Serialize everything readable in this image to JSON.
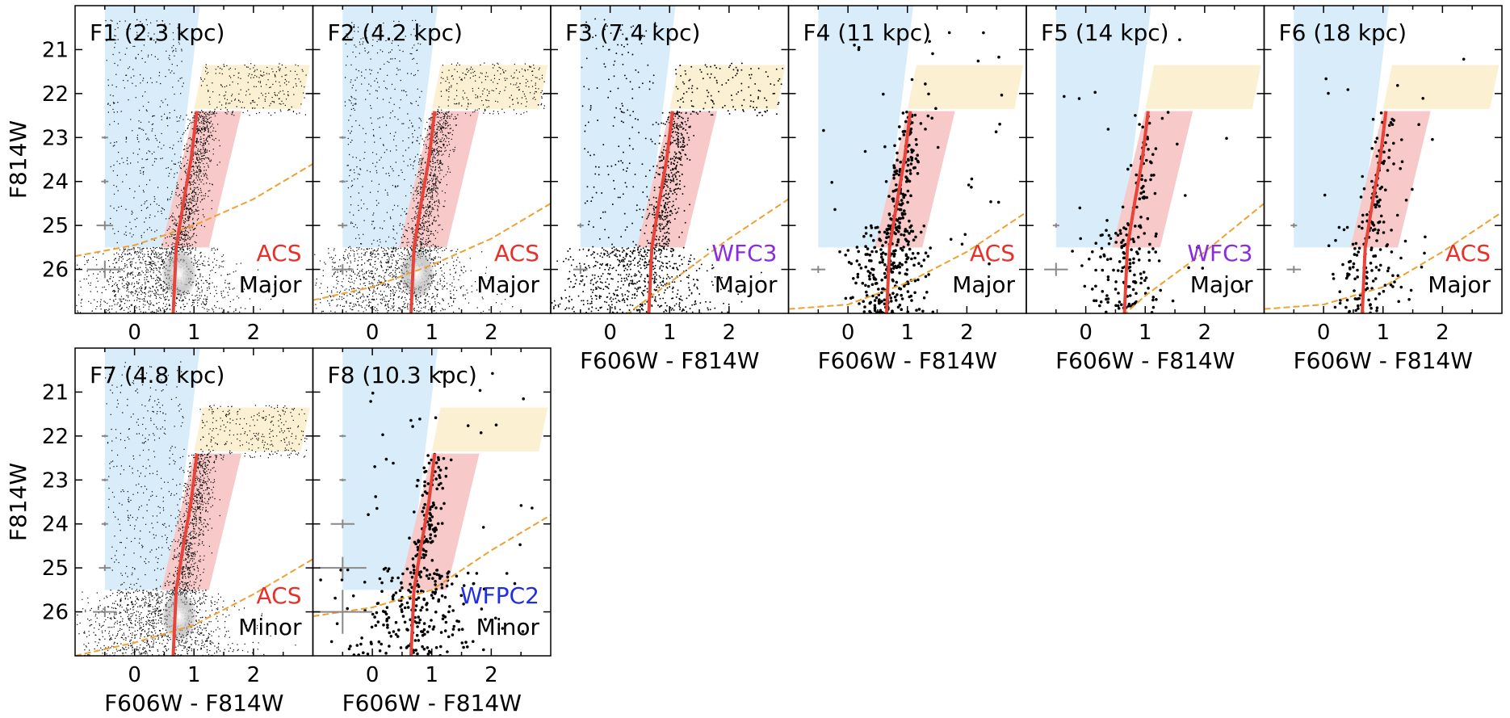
{
  "chart_data": {
    "type": "scatter",
    "layout": "multi-panel color-magnitude diagrams",
    "shared": {
      "xlabel": "F606W - F814W",
      "ylabel": "F814W",
      "xlim": [
        -1.0,
        3.0
      ],
      "ylim": [
        27.0,
        20.0
      ],
      "y_inverted": true,
      "x_ticks": [
        "0",
        "1",
        "2"
      ],
      "y_ticks": [
        "21",
        "22",
        "23",
        "24",
        "25",
        "26"
      ],
      "regions": {
        "blue_region": {
          "color": "#d8ecfa",
          "polygon": [
            [
              -0.5,
              20.0
            ],
            [
              1.1,
              20.0
            ],
            [
              0.6,
              25.5
            ],
            [
              -0.5,
              25.5
            ]
          ]
        },
        "yellow_region": {
          "color": "#fbf1d2",
          "polygon": [
            [
              1.15,
              21.35
            ],
            [
              2.95,
              21.35
            ],
            [
              2.8,
              22.35
            ],
            [
              1.0,
              22.35
            ]
          ]
        },
        "red_region": {
          "color": "#f8c9c9",
          "polygon": [
            [
              1.0,
              22.4
            ],
            [
              1.8,
              22.4
            ],
            [
              1.25,
              25.5
            ],
            [
              0.45,
              25.5
            ]
          ]
        }
      },
      "fiducial_color": "#e8443a",
      "fiducial_line": [
        [
          0.65,
          27.0
        ],
        [
          0.7,
          25.5
        ],
        [
          0.82,
          24.5
        ],
        [
          0.95,
          23.5
        ],
        [
          1.05,
          22.4
        ]
      ],
      "completeness_color": "#f0a030"
    },
    "panels": [
      {
        "id": "F1",
        "title": "F1 (2.3 kpc)",
        "instrument": "ACS",
        "instrument_color": "#e8302a",
        "merger": "Major",
        "density": "dense",
        "show_xlabel": false,
        "show_ylabel": true,
        "completeness_line": [
          [
            -1.0,
            25.7
          ],
          [
            0.0,
            25.45
          ],
          [
            1.0,
            25.0
          ],
          [
            2.0,
            24.4
          ],
          [
            3.0,
            23.6
          ]
        ],
        "error_bars": [
          {
            "y": 23.0,
            "xerr": 0.03,
            "yerr": 0.03
          },
          {
            "y": 24.0,
            "xerr": 0.06,
            "yerr": 0.05
          },
          {
            "y": 25.0,
            "xerr": 0.14,
            "yerr": 0.1
          },
          {
            "y": 26.0,
            "xerr": 0.3,
            "yerr": 0.2
          }
        ]
      },
      {
        "id": "F2",
        "title": "F2 (4.2 kpc)",
        "instrument": "ACS",
        "instrument_color": "#e8302a",
        "merger": "Major",
        "density": "dense",
        "show_xlabel": false,
        "show_ylabel": false,
        "completeness_line": [
          [
            -1.0,
            26.7
          ],
          [
            0.0,
            26.4
          ],
          [
            1.0,
            25.9
          ],
          [
            2.0,
            25.3
          ],
          [
            3.0,
            24.5
          ]
        ],
        "error_bars": [
          {
            "y": 23.0,
            "xerr": 0.02,
            "yerr": 0.02
          },
          {
            "y": 24.0,
            "xerr": 0.04,
            "yerr": 0.03
          },
          {
            "y": 25.0,
            "xerr": 0.08,
            "yerr": 0.06
          },
          {
            "y": 26.0,
            "xerr": 0.18,
            "yerr": 0.12
          }
        ]
      },
      {
        "id": "F3",
        "title": "F3 (7.4 kpc)",
        "instrument": "WFC3",
        "instrument_color": "#8a2be2",
        "merger": "Major",
        "density": "medium",
        "show_xlabel": true,
        "show_ylabel": false,
        "completeness_line": [
          [
            0.0,
            27.3
          ],
          [
            1.0,
            26.3
          ],
          [
            2.0,
            25.3
          ],
          [
            3.0,
            24.4
          ]
        ],
        "error_bars": [
          {
            "y": 25.0,
            "xerr": 0.05,
            "yerr": 0.05
          },
          {
            "y": 26.0,
            "xerr": 0.12,
            "yerr": 0.1
          }
        ]
      },
      {
        "id": "F4",
        "title": "F4 (11 kpc)",
        "instrument": "ACS",
        "instrument_color": "#e8302a",
        "merger": "Major",
        "density": "sparse",
        "show_xlabel": true,
        "show_ylabel": false,
        "completeness_line": [
          [
            -1.0,
            26.9
          ],
          [
            0.0,
            26.8
          ],
          [
            1.0,
            26.3
          ],
          [
            2.0,
            25.6
          ],
          [
            3.0,
            24.7
          ]
        ],
        "error_bars": [
          {
            "y": 26.0,
            "xerr": 0.12,
            "yerr": 0.08
          }
        ]
      },
      {
        "id": "F5",
        "title": "F5 (14 kpc)",
        "instrument": "WFC3",
        "instrument_color": "#8a2be2",
        "merger": "Major",
        "density": "very_sparse",
        "show_xlabel": true,
        "show_ylabel": false,
        "completeness_line": [
          [
            0.5,
            27.2
          ],
          [
            1.0,
            26.6
          ],
          [
            2.0,
            25.6
          ],
          [
            3.0,
            24.5
          ]
        ],
        "error_bars": [
          {
            "y": 25.0,
            "xerr": 0.05,
            "yerr": 0.05
          },
          {
            "y": 26.0,
            "xerr": 0.2,
            "yerr": 0.15
          }
        ]
      },
      {
        "id": "F6",
        "title": "F6 (18 kpc)",
        "instrument": "ACS",
        "instrument_color": "#e8302a",
        "merger": "Major",
        "density": "very_sparse",
        "show_xlabel": true,
        "show_ylabel": false,
        "completeness_line": [
          [
            -1.0,
            26.9
          ],
          [
            0.0,
            26.8
          ],
          [
            1.0,
            26.4
          ],
          [
            2.0,
            25.6
          ],
          [
            3.0,
            24.7
          ]
        ],
        "error_bars": [
          {
            "y": 25.0,
            "xerr": 0.05,
            "yerr": 0.05
          },
          {
            "y": 26.0,
            "xerr": 0.12,
            "yerr": 0.08
          }
        ]
      },
      {
        "id": "F7",
        "title": "F7 (4.8 kpc)",
        "instrument": "ACS",
        "instrument_color": "#e8302a",
        "merger": "Minor",
        "density": "dense",
        "show_xlabel": true,
        "show_ylabel": true,
        "completeness_line": [
          [
            -1.0,
            27.0
          ],
          [
            0.0,
            26.7
          ],
          [
            1.0,
            26.3
          ],
          [
            2.0,
            25.6
          ],
          [
            3.0,
            24.8
          ]
        ],
        "error_bars": [
          {
            "y": 22.0,
            "xerr": 0.02,
            "yerr": 0.02
          },
          {
            "y": 23.0,
            "xerr": 0.03,
            "yerr": 0.03
          },
          {
            "y": 24.0,
            "xerr": 0.05,
            "yerr": 0.04
          },
          {
            "y": 25.0,
            "xerr": 0.1,
            "yerr": 0.07
          },
          {
            "y": 26.0,
            "xerr": 0.2,
            "yerr": 0.12
          }
        ]
      },
      {
        "id": "F8",
        "title": "F8 (10.3 kpc)",
        "instrument": "WFPC2",
        "instrument_color": "#1f2fe0",
        "merger": "Minor",
        "density": "sparse_wide",
        "show_xlabel": true,
        "show_ylabel": false,
        "completeness_line": [
          [
            -1.0,
            26.1
          ],
          [
            0.0,
            25.9
          ],
          [
            1.0,
            25.5
          ],
          [
            2.0,
            24.6
          ],
          [
            3.0,
            23.8
          ]
        ],
        "error_bars": [
          {
            "y": 22.0,
            "xerr": 0.01,
            "yerr": 0.01
          },
          {
            "y": 23.0,
            "xerr": 0.03,
            "yerr": 0.03
          },
          {
            "y": 24.0,
            "xerr": 0.2,
            "yerr": 0.1
          },
          {
            "y": 25.0,
            "xerr": 0.4,
            "yerr": 0.25
          },
          {
            "y": 26.0,
            "xerr": 0.5,
            "yerr": 0.5
          }
        ]
      }
    ]
  }
}
